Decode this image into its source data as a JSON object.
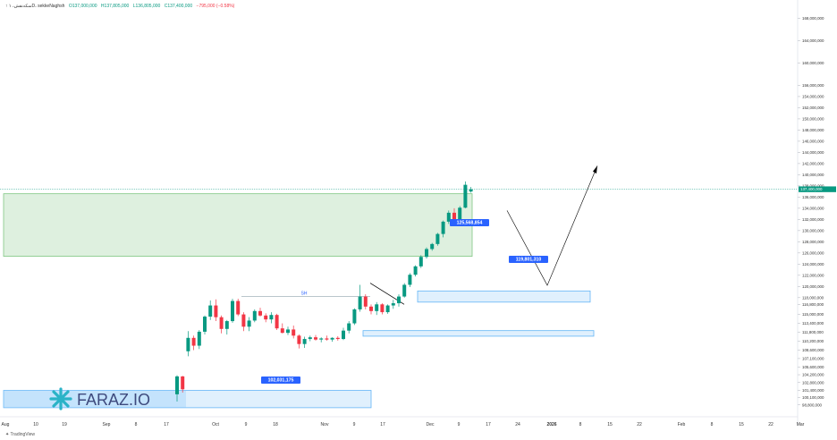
{
  "header": {
    "symbol": "↑ سکه‌نقش، ۱D، sekkeNaghsh",
    "open": "O137,000,000",
    "high": "H137,805,000",
    "low": "L136,805,000",
    "close": "C137,400,000",
    "change": "−795,000 (−0.58%)"
  },
  "footer": {
    "brand": "TradingView"
  },
  "logo": {
    "text": "FARAZ.IO"
  },
  "colors": {
    "up": "#089981",
    "down": "#f23645",
    "label_bg": "#2962ff",
    "zone_green": "#c8e6c9",
    "zone_blue": "#bbdefb"
  },
  "chart_data": {
    "type": "candlestick",
    "y_axis": {
      "range": [
        97000000,
        170000000
      ],
      "ticks": [
        98800000,
        100100000,
        101400000,
        102800000,
        104200000,
        105600000,
        107100000,
        108600000,
        110200000,
        111800000,
        113400000,
        115000000,
        116800000,
        118000000,
        120000000,
        122000000,
        124000000,
        126000000,
        128000000,
        130000000,
        132000000,
        134000000,
        136000000,
        138000000,
        140000000,
        142000000,
        144000000,
        146000000,
        148000000,
        150000000,
        152000000,
        154000000,
        156000000,
        160000000,
        164000000,
        168000000
      ],
      "tick_labels": [
        "98,800,000",
        "100,100,000",
        "101,400,000",
        "102,800,000",
        "104,200,000",
        "105,600,000",
        "107,100,000",
        "108,600,000",
        "110,200,000",
        "111,800,000",
        "113,400,000",
        "115,000,000",
        "116,800,000",
        "118,000,000",
        "120,000,000",
        "122,000,000",
        "124,000,000",
        "126,000,000",
        "128,000,000",
        "130,000,000",
        "132,000,000",
        "134,000,000",
        "136,000,000",
        "138,000,000",
        "140,000,000",
        "142,000,000",
        "144,000,000",
        "146,000,000",
        "148,000,000",
        "150,000,000",
        "152,000,000",
        "154,000,000",
        "156,000,000",
        "160,000,000",
        "164,000,000",
        "168,000,000"
      ]
    },
    "x_axis": {
      "labels": [
        "Aug",
        "10",
        "19",
        "Sep",
        "8",
        "17",
        "Oct",
        "9",
        "18",
        "Nov",
        "9",
        "17",
        "Dec",
        "9",
        "17",
        "24",
        "2026",
        "8",
        "15",
        "22",
        "Feb",
        "8",
        "15",
        "22",
        "Mar"
      ]
    },
    "last_price": {
      "value": 137400000,
      "label": "137,400,000"
    },
    "candles": [
      [
        100700000,
        104100000,
        99400000,
        103900000
      ],
      [
        103900000,
        104000000,
        101000000,
        101600000
      ],
      [
        108400000,
        112000000,
        107500000,
        110800000
      ],
      [
        110800000,
        111200000,
        108600000,
        109400000
      ],
      [
        109400000,
        112200000,
        108800000,
        111900000
      ],
      [
        111900000,
        114800000,
        111400000,
        114600000
      ],
      [
        114600000,
        117500000,
        114000000,
        116600000
      ],
      [
        116600000,
        117700000,
        113800000,
        114500000
      ],
      [
        114500000,
        114800000,
        111600000,
        112400000
      ],
      [
        112400000,
        114000000,
        111400000,
        113800000
      ],
      [
        113800000,
        117800000,
        113500000,
        117400000
      ],
      [
        117400000,
        117800000,
        114700000,
        115000000
      ],
      [
        115000000,
        115400000,
        112000000,
        112800000
      ],
      [
        112800000,
        114500000,
        112000000,
        113900000
      ],
      [
        113900000,
        115900000,
        113600000,
        115600000
      ],
      [
        115600000,
        116200000,
        114600000,
        114800000
      ],
      [
        114800000,
        115200000,
        113600000,
        114100000
      ],
      [
        114100000,
        115400000,
        113400000,
        114900000
      ],
      [
        114900000,
        115100000,
        112200000,
        112500000
      ],
      [
        112500000,
        113400000,
        111600000,
        111700000
      ],
      [
        111700000,
        112800000,
        111300000,
        112300000
      ],
      [
        112300000,
        113000000,
        110700000,
        111200000
      ],
      [
        111200000,
        111400000,
        108900000,
        109700000
      ],
      [
        109700000,
        111000000,
        109000000,
        110600000
      ],
      [
        110600000,
        111200000,
        110200000,
        110900000
      ],
      [
        110900000,
        111300000,
        110300000,
        110500000
      ],
      [
        110500000,
        110900000,
        110000000,
        110700000
      ],
      [
        110700000,
        111200000,
        110300000,
        110500000
      ],
      [
        110500000,
        110900000,
        110100000,
        110800000
      ],
      [
        110800000,
        111100000,
        110300000,
        110600000
      ],
      [
        110600000,
        112600000,
        110400000,
        112100000
      ],
      [
        112100000,
        113800000,
        111600000,
        113400000
      ],
      [
        113400000,
        116100000,
        113100000,
        115900000
      ],
      [
        115900000,
        120300000,
        115500000,
        118200000
      ],
      [
        118200000,
        118600000,
        115900000,
        116400000
      ],
      [
        116400000,
        116800000,
        115000000,
        115600000
      ],
      [
        115600000,
        117200000,
        114900000,
        116800000
      ],
      [
        116800000,
        117000000,
        115000000,
        115400000
      ],
      [
        115400000,
        116800000,
        115100000,
        116600000
      ],
      [
        116600000,
        117600000,
        116000000,
        117000000
      ],
      [
        117000000,
        118600000,
        116400000,
        118200000
      ],
      [
        118200000,
        120600000,
        118000000,
        120300000
      ],
      [
        120300000,
        122400000,
        119900000,
        122100000
      ],
      [
        122100000,
        123800000,
        121800000,
        123600000
      ],
      [
        123600000,
        125600000,
        123300000,
        125300000
      ],
      [
        125300000,
        127000000,
        125000000,
        126700000
      ],
      [
        126700000,
        127800000,
        126400000,
        127600000
      ],
      [
        127600000,
        129600000,
        127300000,
        129400000
      ],
      [
        129400000,
        131800000,
        128800000,
        131600000
      ],
      [
        131600000,
        133600000,
        131200000,
        133200000
      ],
      [
        133200000,
        134000000,
        131000000,
        131600000
      ],
      [
        131600000,
        134400000,
        131300000,
        134100000
      ],
      [
        134100000,
        138800000,
        134000000,
        138200000
      ],
      [
        137000000,
        137805000,
        136805000,
        137400000
      ]
    ],
    "zones": [
      {
        "kind": "green",
        "top": 136600000,
        "bottom": 125400000
      },
      {
        "kind": "blue",
        "top": 119200000,
        "bottom": 117200000
      },
      {
        "kind": "blue",
        "top": 112100000,
        "bottom": 111100000
      },
      {
        "kind": "blue",
        "top": 101400000,
        "bottom": 98300000
      }
    ],
    "labels": [
      {
        "value": 125568854,
        "text": "125,568,854"
      },
      {
        "value": 119801310,
        "text": "119,801,310"
      },
      {
        "value": 102031175,
        "text": "102,031,175"
      }
    ],
    "sh_line": {
      "value": 118200000,
      "text": "SH"
    }
  }
}
